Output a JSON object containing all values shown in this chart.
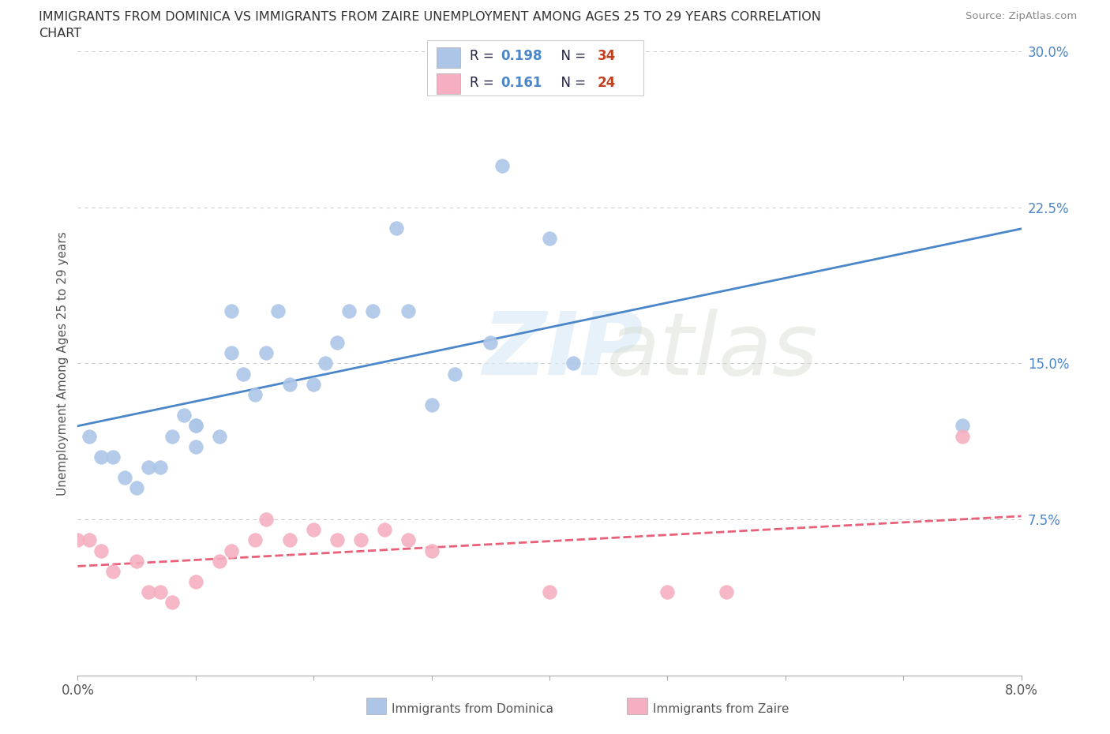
{
  "title_line1": "IMMIGRANTS FROM DOMINICA VS IMMIGRANTS FROM ZAIRE UNEMPLOYMENT AMONG AGES 25 TO 29 YEARS CORRELATION",
  "title_line2": "CHART",
  "source": "Source: ZipAtlas.com",
  "ylabel": "Unemployment Among Ages 25 to 29 years",
  "xlim": [
    0.0,
    0.08
  ],
  "ylim": [
    0.0,
    0.3
  ],
  "xticks": [
    0.0,
    0.01,
    0.02,
    0.03,
    0.04,
    0.05,
    0.06,
    0.07,
    0.08
  ],
  "xticklabels": [
    "0.0%",
    "",
    "",
    "",
    "",
    "",
    "",
    "",
    "8.0%"
  ],
  "yticks_right": [
    0.075,
    0.15,
    0.225,
    0.3
  ],
  "yticklabels_right": [
    "7.5%",
    "15.0%",
    "22.5%",
    "30.0%"
  ],
  "dominica_color": "#adc6e8",
  "zaire_color": "#f5afc0",
  "dominica_line_color": "#4a86c8",
  "zaire_line_color": "#e8607a",
  "dominica_R": 0.198,
  "dominica_N": 34,
  "zaire_R": 0.161,
  "zaire_N": 24,
  "background_color": "#ffffff",
  "grid_color": "#cccccc",
  "label_color": "#4a86c8",
  "text_color": "#333333",
  "dominica_x": [
    0.001,
    0.002,
    0.003,
    0.004,
    0.005,
    0.006,
    0.007,
    0.008,
    0.009,
    0.01,
    0.01,
    0.012,
    0.013,
    0.013,
    0.014,
    0.015,
    0.016,
    0.017,
    0.018,
    0.02,
    0.021,
    0.022,
    0.023,
    0.025,
    0.027,
    0.028,
    0.03,
    0.032,
    0.035,
    0.036,
    0.04,
    0.042,
    0.01,
    0.075
  ],
  "dominica_y": [
    0.115,
    0.105,
    0.105,
    0.095,
    0.09,
    0.1,
    0.1,
    0.115,
    0.125,
    0.12,
    0.11,
    0.115,
    0.155,
    0.175,
    0.145,
    0.135,
    0.155,
    0.175,
    0.14,
    0.14,
    0.15,
    0.16,
    0.175,
    0.175,
    0.215,
    0.175,
    0.13,
    0.145,
    0.16,
    0.245,
    0.21,
    0.15,
    0.12,
    0.12
  ],
  "zaire_x": [
    0.0,
    0.001,
    0.002,
    0.003,
    0.005,
    0.006,
    0.007,
    0.008,
    0.01,
    0.012,
    0.013,
    0.015,
    0.016,
    0.018,
    0.02,
    0.022,
    0.024,
    0.026,
    0.028,
    0.03,
    0.04,
    0.05,
    0.055,
    0.075
  ],
  "zaire_y": [
    0.065,
    0.065,
    0.06,
    0.05,
    0.055,
    0.04,
    0.04,
    0.035,
    0.045,
    0.055,
    0.06,
    0.065,
    0.075,
    0.065,
    0.07,
    0.065,
    0.065,
    0.07,
    0.065,
    0.06,
    0.04,
    0.04,
    0.04,
    0.115
  ]
}
